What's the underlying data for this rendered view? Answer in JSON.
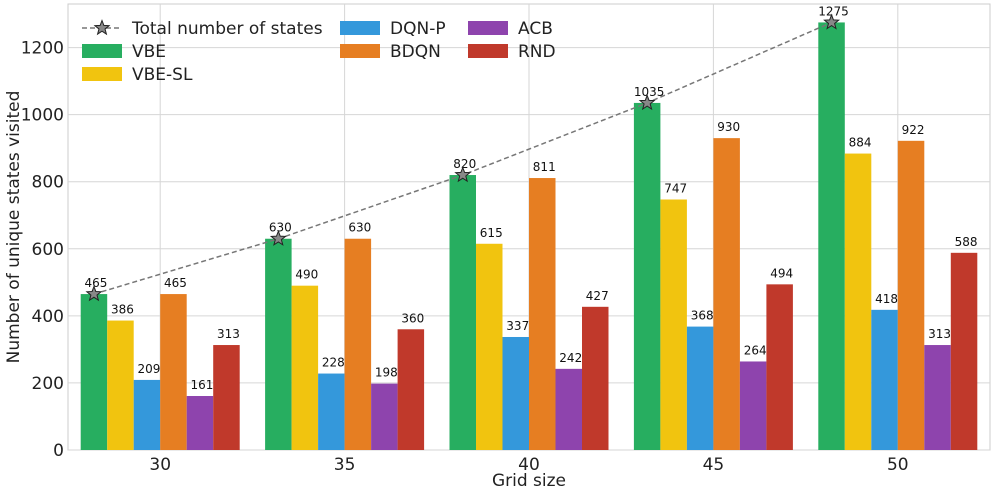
{
  "chart_data": {
    "type": "bar",
    "title": "",
    "xlabel": "Grid size",
    "ylabel": "Number of unique states visited",
    "categories": [
      "30",
      "35",
      "40",
      "45",
      "50"
    ],
    "ylim": [
      0,
      1330
    ],
    "yticks": [
      0,
      200,
      400,
      600,
      800,
      1000,
      1200
    ],
    "grid": true,
    "legend_position": "top-left",
    "series": [
      {
        "name": "VBE",
        "color": "#27ae60",
        "values": [
          465,
          630,
          820,
          1035,
          1275
        ]
      },
      {
        "name": "VBE-SL",
        "color": "#f1c40f",
        "values": [
          386,
          490,
          615,
          747,
          884
        ]
      },
      {
        "name": "DQN-P",
        "color": "#3498db",
        "values": [
          209,
          228,
          337,
          368,
          418
        ]
      },
      {
        "name": "BDQN",
        "color": "#e67e22",
        "values": [
          465,
          630,
          811,
          930,
          922
        ]
      },
      {
        "name": "ACB",
        "color": "#8e44ad",
        "values": [
          161,
          198,
          242,
          264,
          313
        ]
      },
      {
        "name": "RND",
        "color": "#c0392b",
        "values": [
          313,
          360,
          427,
          494,
          588
        ]
      }
    ],
    "total_states": {
      "name": "Total number of states",
      "values": [
        465,
        630,
        820,
        1035,
        1275
      ],
      "style": "dashed line with star markers",
      "color": "#777777"
    },
    "legend_order": [
      "Total number of states",
      "VBE",
      "VBE-SL",
      "DQN-P",
      "BDQN",
      "ACB",
      "RND"
    ]
  }
}
